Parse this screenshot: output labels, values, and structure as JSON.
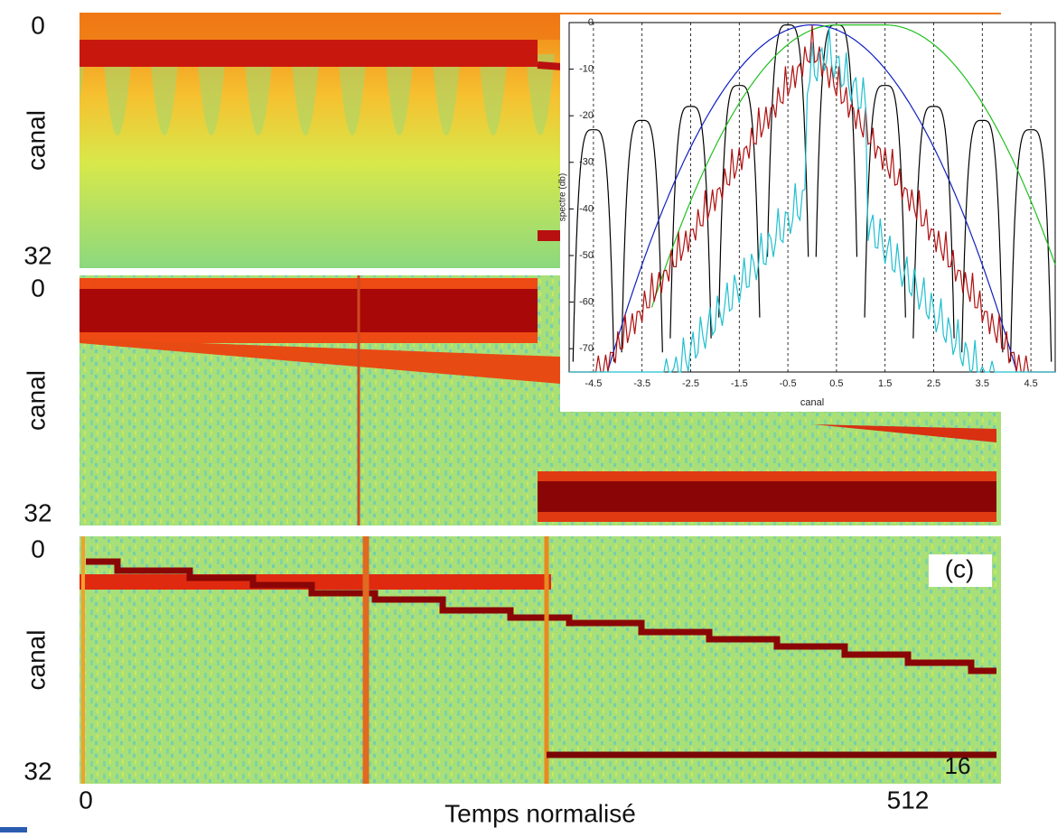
{
  "figure": {
    "panels": [
      {
        "y_top": "0",
        "y_label": "canal",
        "y_bottom": "32"
      },
      {
        "y_top": "0",
        "y_label": "canal",
        "y_bottom": "32"
      },
      {
        "y_top": "0",
        "y_label": "canal",
        "y_bottom": "32",
        "tag": "(c)"
      }
    ],
    "x_start": "0",
    "x_label": "Temps normalisé",
    "x_end": "512"
  },
  "page_number": "16",
  "chart_data": {
    "type": "line",
    "xlabel": "canal",
    "ylabel": "spectre (db)",
    "xlim": [
      -5,
      5
    ],
    "xticks": [
      -4.5,
      -3.5,
      -2.5,
      -1.5,
      -0.5,
      0.5,
      1.5,
      2.5,
      3.5,
      4.5
    ],
    "ylim": [
      -75,
      0
    ],
    "yticks": [
      0,
      -10,
      -20,
      -30,
      -40,
      -50,
      -60,
      -70
    ],
    "grid": true
  }
}
